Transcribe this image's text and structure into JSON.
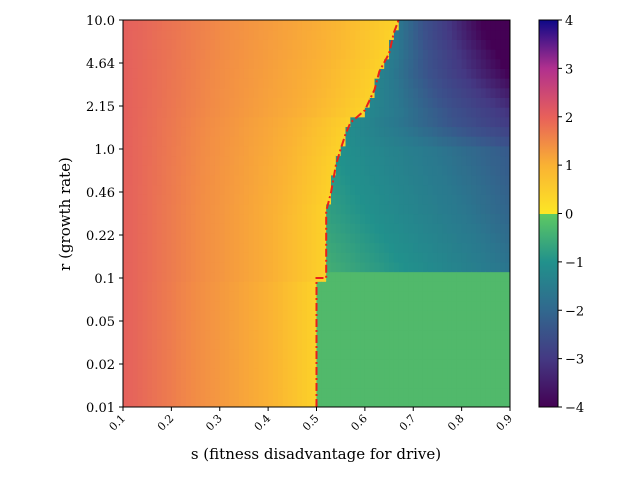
{
  "chart_data": {
    "type": "heatmap",
    "title": "",
    "xlabel": "s (fitness disadvantage for drive)",
    "ylabel": "r (growth rate)",
    "x_ticks": [
      "0.1",
      "0.2",
      "0.3",
      "0.4",
      "0.5",
      "0.6",
      "0.7",
      "0.8",
      "0.9"
    ],
    "y_ticks": [
      "0.01",
      "0.02",
      "0.05",
      "0.1",
      "0.22",
      "0.46",
      "1.0",
      "2.15",
      "4.64",
      "10.0"
    ],
    "x_range": [
      0.1,
      0.9
    ],
    "y_range_log10": [
      -2,
      1
    ],
    "y_scale": "log",
    "grid": false,
    "colorbar": {
      "ticks": [
        "4",
        "3",
        "2",
        "1",
        "0",
        "−1",
        "−2",
        "−3",
        "−4"
      ],
      "range": [
        -4,
        4
      ],
      "positive_colormap": "plasma-like (pink → orange → yellow)",
      "negative_colormap": "viridis-like (green → teal → dark purple)"
    },
    "regions": [
      {
        "name": "gradient from ~1.7 at s=0.1 to ~0.2 at the boundary",
        "side": "left of boundary"
      },
      {
        "name": "values from about -0.6 down to -4",
        "side": "right of boundary"
      }
    ],
    "boundary_curve": {
      "color": "#e8201a",
      "style": "dash-dot",
      "points": [
        [
          0.5,
          0.01
        ],
        [
          0.5,
          0.1
        ],
        [
          0.52,
          0.1
        ],
        [
          0.52,
          0.33
        ],
        [
          0.53,
          0.46
        ],
        [
          0.54,
          0.75
        ],
        [
          0.55,
          1.0
        ],
        [
          0.56,
          1.3
        ],
        [
          0.57,
          1.6
        ],
        [
          0.6,
          2.0
        ],
        [
          0.62,
          2.9
        ],
        [
          0.63,
          4.0
        ],
        [
          0.65,
          5.5
        ],
        [
          0.66,
          8.0
        ],
        [
          0.67,
          10.0
        ]
      ]
    }
  }
}
